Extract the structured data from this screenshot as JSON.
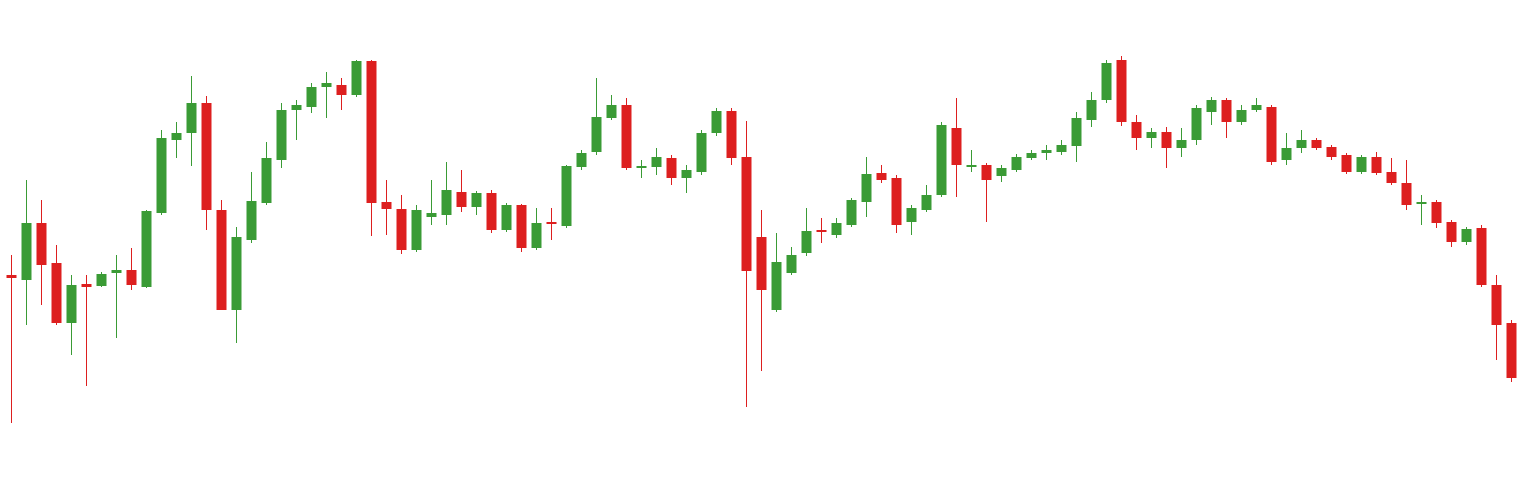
{
  "chart_data": {
    "type": "candlestick",
    "up_color": "#3a9b35",
    "down_color": "#dd1f1f",
    "ylim": [
      0,
      484
    ],
    "open": [
      209,
      204,
      261,
      221,
      161,
      200,
      198,
      211,
      214,
      197,
      271,
      344,
      351,
      381,
      274,
      174,
      244,
      281,
      324,
      374,
      377,
      397,
      399,
      389,
      423,
      282,
      275,
      234,
      267,
      269,
      292,
      277,
      291,
      254,
      279,
      236,
      262,
      258,
      317,
      332,
      366,
      379,
      316,
      317,
      326,
      306,
      312,
      351,
      373,
      327,
      247,
      174,
      211,
      231,
      254,
      249,
      259,
      282,
      311,
      306,
      262,
      274,
      289,
      356,
      317,
      319,
      308,
      314,
      326,
      331,
      332,
      338,
      364,
      384,
      424,
      362,
      346,
      352,
      336,
      344,
      372,
      384,
      362,
      374,
      377,
      324,
      336,
      344,
      337,
      329,
      312,
      327,
      312,
      301,
      280,
      282,
      262,
      242,
      256,
      199,
      161
    ],
    "high": [
      229,
      304,
      284,
      239,
      209,
      209,
      212,
      229,
      236,
      274,
      354,
      362,
      408,
      388,
      284,
      257,
      312,
      342,
      381,
      384,
      401,
      412,
      406,
      424,
      424,
      304,
      289,
      279,
      304,
      322,
      314,
      293,
      294,
      281,
      280,
      276,
      276,
      319,
      334,
      406,
      389,
      386,
      324,
      336,
      329,
      319,
      354,
      376,
      376,
      363,
      274,
      251,
      237,
      276,
      266,
      266,
      286,
      327,
      319,
      309,
      279,
      299,
      362,
      386,
      334,
      321,
      319,
      330,
      334,
      339,
      344,
      372,
      392,
      424,
      428,
      369,
      356,
      357,
      356,
      379,
      387,
      386,
      379,
      386,
      379,
      351,
      354,
      346,
      339,
      331,
      329,
      332,
      326,
      324,
      289,
      284,
      264,
      257,
      259,
      209,
      164
    ],
    "low": [
      61,
      159,
      179,
      159,
      129,
      98,
      197,
      146,
      194,
      196,
      269,
      326,
      318,
      254,
      174,
      141,
      241,
      279,
      316,
      344,
      371,
      366,
      374,
      387,
      248,
      249,
      230,
      232,
      259,
      259,
      272,
      269,
      251,
      252,
      232,
      234,
      244,
      256,
      314,
      329,
      364,
      314,
      306,
      309,
      299,
      291,
      309,
      348,
      319,
      77,
      113,
      172,
      209,
      228,
      241,
      246,
      257,
      267,
      301,
      251,
      249,
      272,
      287,
      287,
      312,
      262,
      302,
      312,
      324,
      324,
      329,
      322,
      357,
      381,
      358,
      334,
      336,
      316,
      327,
      339,
      359,
      346,
      359,
      372,
      319,
      319,
      331,
      334,
      324,
      310,
      310,
      309,
      299,
      274,
      259,
      256,
      237,
      239,
      197,
      124,
      102
    ],
    "close": [
      206,
      261,
      219,
      161,
      199,
      197,
      210,
      214,
      199,
      273,
      346,
      351,
      381,
      274,
      174,
      247,
      283,
      326,
      374,
      379,
      397,
      401,
      389,
      423,
      281,
      275,
      234,
      274,
      271,
      294,
      277,
      291,
      254,
      279,
      236,
      261,
      260,
      318,
      331,
      367,
      379,
      316,
      318,
      327,
      306,
      314,
      351,
      373,
      326,
      213,
      194,
      222,
      229,
      253,
      252,
      261,
      284,
      310,
      304,
      259,
      276,
      289,
      359,
      319,
      319,
      304,
      316,
      327,
      331,
      334,
      339,
      366,
      384,
      421,
      362,
      346,
      352,
      336,
      344,
      376,
      384,
      362,
      374,
      379,
      322,
      336,
      344,
      336,
      327,
      312,
      327,
      311,
      301,
      279,
      282,
      261,
      242,
      255,
      199,
      159,
      106
    ]
  }
}
